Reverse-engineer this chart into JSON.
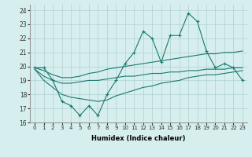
{
  "xlabel": "Humidex (Indice chaleur)",
  "background_color": "#d6eeee",
  "line_color": "#1a7a6e",
  "grid_color": "#b0d0d0",
  "xlim": [
    -0.5,
    23.5
  ],
  "ylim": [
    16,
    24.4
  ],
  "yticks": [
    16,
    17,
    18,
    19,
    20,
    21,
    22,
    23,
    24
  ],
  "xticks": [
    0,
    1,
    2,
    3,
    4,
    5,
    6,
    7,
    8,
    9,
    10,
    11,
    12,
    13,
    14,
    15,
    16,
    17,
    18,
    19,
    20,
    21,
    22,
    23
  ],
  "series": {
    "top": [
      19.9,
      19.9,
      19.0,
      17.5,
      17.2,
      16.5,
      17.2,
      16.5,
      18.0,
      19.0,
      20.2,
      21.0,
      22.5,
      22.0,
      20.3,
      22.2,
      22.2,
      23.8,
      23.2,
      21.1,
      19.9,
      20.2,
      19.9,
      19.0
    ],
    "upper_mid": [
      19.9,
      19.7,
      19.4,
      19.2,
      19.2,
      19.3,
      19.5,
      19.6,
      19.8,
      19.9,
      20.0,
      20.1,
      20.2,
      20.3,
      20.4,
      20.5,
      20.6,
      20.7,
      20.8,
      20.9,
      20.9,
      21.0,
      21.0,
      21.1
    ],
    "lower_mid": [
      19.8,
      19.3,
      19.0,
      18.8,
      18.8,
      18.9,
      19.0,
      19.0,
      19.1,
      19.2,
      19.3,
      19.3,
      19.4,
      19.5,
      19.5,
      19.6,
      19.6,
      19.7,
      19.7,
      19.8,
      19.8,
      19.8,
      19.9,
      19.9
    ],
    "bot": [
      19.8,
      19.0,
      18.5,
      18.0,
      17.8,
      17.7,
      17.6,
      17.5,
      17.6,
      17.9,
      18.1,
      18.3,
      18.5,
      18.6,
      18.8,
      18.9,
      19.0,
      19.2,
      19.3,
      19.4,
      19.4,
      19.5,
      19.6,
      19.7
    ]
  }
}
